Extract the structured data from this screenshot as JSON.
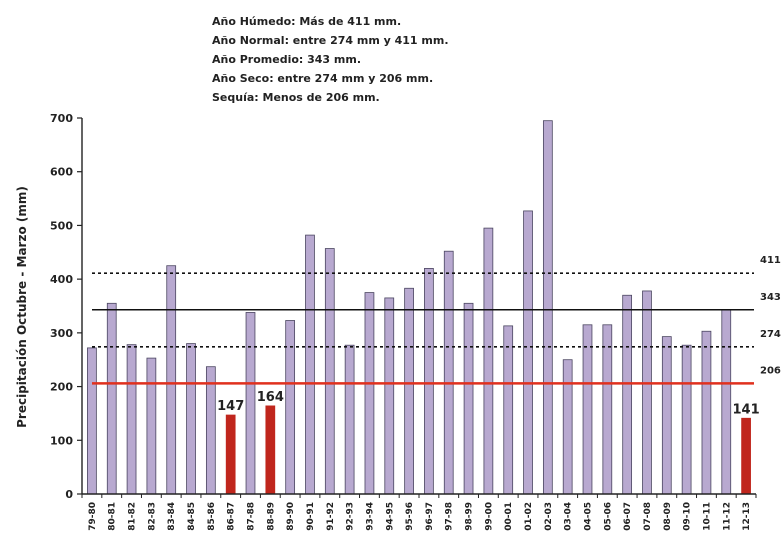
{
  "chart_data": {
    "type": "bar",
    "ylabel": "Precipitación Octubre - Marzo (mm)",
    "ylim": [
      0,
      700
    ],
    "yticks": [
      0,
      100,
      200,
      300,
      400,
      500,
      600,
      700
    ],
    "annotations": [
      "Año Húmedo: Más de 411 mm.",
      "Año Normal: entre 274 mm y 411 mm.",
      "Año Promedio: 343 mm.",
      "Año Seco: entre 274 mm y 206 mm.",
      "Sequía: Menos de 206 mm."
    ],
    "categories": [
      "79-80",
      "80-81",
      "81-82",
      "82-83",
      "83-84",
      "84-85",
      "85-86",
      "86-87",
      "87-88",
      "88-89",
      "89-90",
      "90-91",
      "91-92",
      "92-93",
      "93-94",
      "94-95",
      "95-96",
      "96-97",
      "97-98",
      "98-99",
      "99-00",
      "00-01",
      "01-02",
      "02-03",
      "03-04",
      "04-05",
      "05-06",
      "06-07",
      "07-08",
      "08-09",
      "09-10",
      "10-11",
      "11-12",
      "12-13"
    ],
    "values": [
      272,
      355,
      278,
      253,
      425,
      280,
      237,
      147,
      338,
      164,
      323,
      482,
      457,
      277,
      375,
      365,
      383,
      420,
      452,
      355,
      495,
      313,
      527,
      695,
      250,
      315,
      315,
      370,
      378,
      293,
      277,
      303,
      343,
      141
    ],
    "colors": {
      "normal": "#b8a9d0",
      "drought": "#c0261d",
      "bar_edge": "#4a4560"
    },
    "drought_threshold": 206,
    "data_labels": [
      {
        "index": 7,
        "text": "147"
      },
      {
        "index": 9,
        "text": "164"
      },
      {
        "index": 33,
        "text": "141"
      }
    ],
    "reference_lines": [
      {
        "value": 411,
        "label": "411",
        "style": "dashed",
        "color": "#111111"
      },
      {
        "value": 343,
        "label": "343",
        "style": "solid",
        "color": "#111111"
      },
      {
        "value": 274,
        "label": "274",
        "style": "dashed",
        "color": "#111111"
      },
      {
        "value": 206,
        "label": "206",
        "style": "solid",
        "color": "#e0301e"
      }
    ],
    "grid": false,
    "legend": "top-center"
  }
}
